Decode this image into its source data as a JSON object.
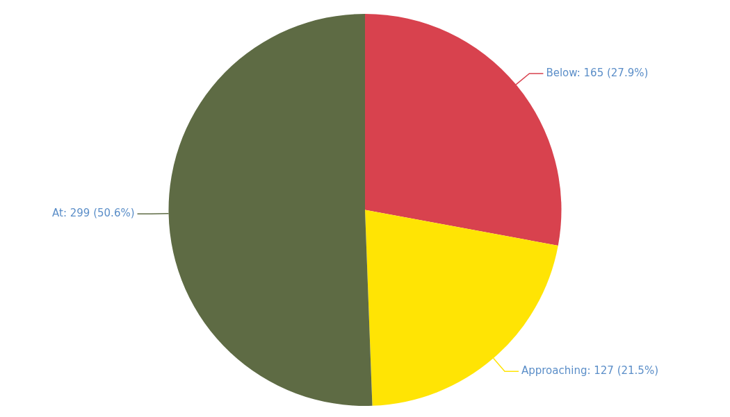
{
  "chart_data": {
    "type": "pie",
    "categories": [
      "Below",
      "Approaching",
      "At"
    ],
    "values": [
      165,
      127,
      299
    ],
    "value_labels": [
      "165 (27.9%)",
      "127 (21.5%)",
      "299 (50.6%)"
    ],
    "colors": [
      "#d8424e",
      "#ffe404",
      "#5e6b44"
    ],
    "legend": false
  }
}
